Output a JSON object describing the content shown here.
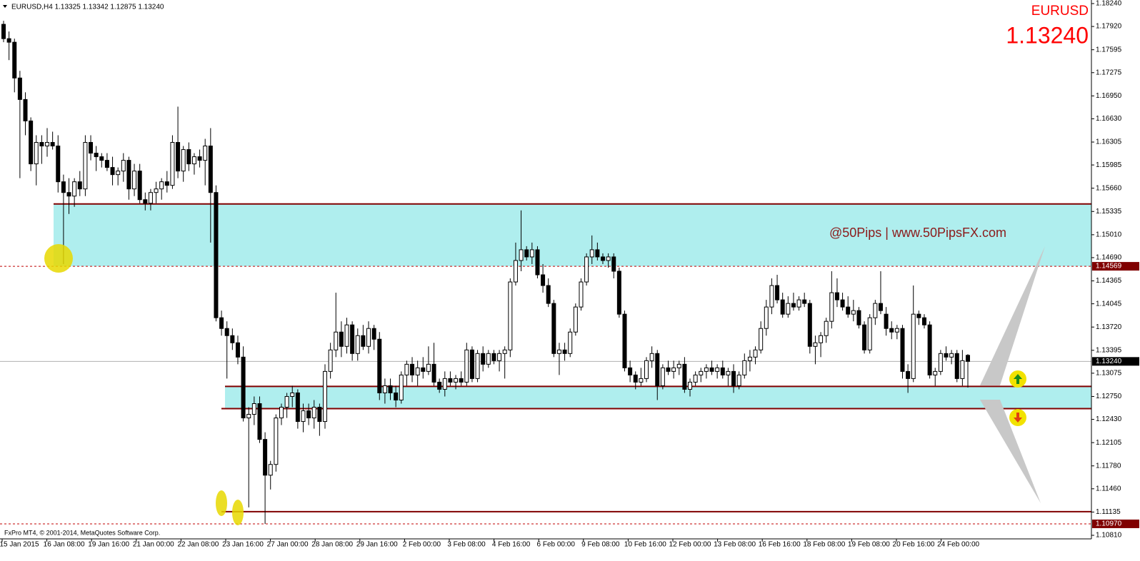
{
  "chart_data": {
    "type": "candlestick",
    "header": "EURUSD,H4  1.13325 1.13342 1.12875 1.13240",
    "symbol": "EURUSD",
    "last_price": {
      "value": 1.1324,
      "label": "1.13240"
    },
    "watermark": "@50Pips | www.50PipsFX.com",
    "copyright": "FxPro MT4, © 2001-2014, MetaQuotes Software Corp.",
    "up_color": "#ffffff",
    "down_color": "#000000",
    "zone_color": "#afeeee",
    "level_color": "#800000",
    "ylim": [
      1.1076,
      1.1829
    ],
    "yticks": [
      {
        "value": 1.1824,
        "label": "1.18240"
      },
      {
        "value": 1.1792,
        "label": "1.17920"
      },
      1.17595,
      1.17275,
      {
        "value": 1.1695,
        "label": "1.16950"
      },
      {
        "value": 1.1663,
        "label": "1.16630"
      },
      1.16305,
      1.15985,
      {
        "value": 1.1566,
        "label": "1.15660"
      },
      1.15335,
      {
        "value": 1.1501,
        "label": "1.15010"
      },
      {
        "value": 1.1469,
        "label": "1.14690"
      },
      1.14365,
      1.14045,
      {
        "value": 1.1372,
        "label": "1.13720"
      },
      1.13395,
      1.13075,
      {
        "value": 1.1275,
        "label": "1.12750"
      },
      {
        "value": 1.1243,
        "label": "1.12430"
      },
      1.12105,
      {
        "value": 1.1178,
        "label": "1.11780"
      },
      {
        "value": 1.1146,
        "label": "1.11460"
      },
      1.11135,
      {
        "value": 1.1081,
        "label": "1.10810"
      }
    ],
    "x_labels": [
      "15 Jan 2015",
      "16 Jan 08:00",
      "19 Jan 16:00",
      "21 Jan 00:00",
      "22 Jan 08:00",
      "23 Jan 16:00",
      "27 Jan 00:00",
      "28 Jan 08:00",
      "29 Jan 16:00",
      "2 Feb 00:00",
      "3 Feb 08:00",
      "4 Feb 16:00",
      "6 Feb 00:00",
      "9 Feb 08:00",
      "10 Feb 16:00",
      "12 Feb 00:00",
      "13 Feb 08:00",
      "16 Feb 16:00",
      "18 Feb 08:00",
      "19 Feb 08:00",
      "20 Feb 16:00",
      "24 Feb 00:00"
    ],
    "zones": [
      {
        "from": 1.14569,
        "to": 1.1544
      },
      {
        "from": 1.1258,
        "to": 1.1289
      }
    ],
    "levels": [
      1.1544,
      1.1289,
      1.1258,
      1.1114
    ],
    "price_tags": [
      {
        "value": 1.14569,
        "label": "1.14569",
        "color": "#800000",
        "line": "dashed"
      },
      {
        "value": 1.1324,
        "label": "1.13240",
        "color": "#000000",
        "line": "solid"
      },
      {
        "value": 1.1097,
        "label": "1.10970",
        "color": "#800000",
        "line": "dashed"
      }
    ],
    "open": [
      1.1795,
      1.1775,
      1.177,
      1.172,
      1.169,
      1.166,
      1.16,
      1.163,
      1.1625,
      1.163,
      1.1625,
      1.1575,
      1.156,
      1.1555,
      1.1575,
      1.1565,
      1.163,
      1.1615,
      1.161,
      1.1605,
      1.1595,
      1.1585,
      1.159,
      1.1605,
      1.1565,
      1.159,
      1.155,
      1.1545,
      1.156,
      1.1565,
      1.1575,
      1.157,
      1.163,
      1.159,
      1.162,
      1.16,
      1.161,
      1.1605,
      1.1625,
      1.156,
      1.1385,
      1.137,
      1.136,
      1.135,
      1.133,
      1.1245,
      1.125,
      1.1265,
      1.1215,
      1.1165,
      1.118,
      1.1245,
      1.126,
      1.1275,
      1.128,
      1.124,
      1.1255,
      1.1245,
      1.126,
      1.124,
      1.131,
      1.134,
      1.1365,
      1.1345,
      1.1375,
      1.1335,
      1.136,
      1.1345,
      1.137,
      1.1355,
      1.128,
      1.129,
      1.128,
      1.127,
      1.1305,
      1.132,
      1.1305,
      1.1315,
      1.131,
      1.132,
      1.1295,
      1.1285,
      1.13,
      1.1295,
      1.13,
      1.1295,
      1.134,
      1.13,
      1.1335,
      1.132,
      1.1335,
      1.1325,
      1.1335,
      1.134,
      1.1435,
      1.1465,
      1.148,
      1.147,
      1.148,
      1.1445,
      1.143,
      1.1405,
      1.1335,
      1.134,
      1.1335,
      1.1365,
      1.14,
      1.1435,
      1.147,
      1.148,
      1.147,
      1.1465,
      1.147,
      1.145,
      1.139,
      1.1315,
      1.1305,
      1.1295,
      1.13,
      1.1325,
      1.1335,
      1.129,
      1.1315,
      1.131,
      1.1315,
      1.132,
      1.1285,
      1.1295,
      1.1305,
      1.131,
      1.1315,
      1.131,
      1.1315,
      1.1305,
      1.131,
      1.129,
      1.1305,
      1.1325,
      1.133,
      1.134,
      1.137,
      1.14,
      1.143,
      1.141,
      1.139,
      1.1405,
      1.14,
      1.141,
      1.1405,
      1.1345,
      1.135,
      1.136,
      1.138,
      1.142,
      1.141,
      1.14,
      1.139,
      1.1395,
      1.1375,
      1.134,
      1.1385,
      1.1405,
      1.139,
      1.137,
      1.1365,
      1.137,
      1.131,
      1.13,
      1.139,
      1.1385,
      1.1375,
      1.1305,
      1.131,
      1.1335,
      1.133,
      1.1335,
      1.13,
      1.13325
    ],
    "high": [
      1.18,
      1.1785,
      1.1775,
      1.173,
      1.17,
      1.1665,
      1.164,
      1.164,
      1.165,
      1.1645,
      1.164,
      1.1585,
      1.158,
      1.158,
      1.159,
      1.164,
      1.164,
      1.1625,
      1.1615,
      1.1615,
      1.161,
      1.1595,
      1.1615,
      1.161,
      1.16,
      1.16,
      1.156,
      1.1565,
      1.1575,
      1.158,
      1.159,
      1.164,
      1.168,
      1.1625,
      1.163,
      1.1615,
      1.162,
      1.1635,
      1.165,
      1.157,
      1.1395,
      1.138,
      1.137,
      1.136,
      1.1345,
      1.126,
      1.1275,
      1.1275,
      1.1225,
      1.1185,
      1.125,
      1.1265,
      1.128,
      1.129,
      1.1285,
      1.1265,
      1.1265,
      1.127,
      1.1265,
      1.132,
      1.135,
      1.142,
      1.138,
      1.1385,
      1.138,
      1.137,
      1.1375,
      1.138,
      1.1375,
      1.1365,
      1.13,
      1.13,
      1.129,
      1.131,
      1.1325,
      1.133,
      1.1325,
      1.133,
      1.1345,
      1.135,
      1.13,
      1.131,
      1.131,
      1.1305,
      1.131,
      1.135,
      1.1345,
      1.134,
      1.1345,
      1.134,
      1.134,
      1.134,
      1.1345,
      1.144,
      1.149,
      1.1535,
      1.1485,
      1.149,
      1.1485,
      1.146,
      1.144,
      1.141,
      1.135,
      1.135,
      1.137,
      1.1405,
      1.144,
      1.1475,
      1.15,
      1.149,
      1.1475,
      1.1475,
      1.1475,
      1.1455,
      1.1395,
      1.1325,
      1.131,
      1.1315,
      1.133,
      1.1345,
      1.134,
      1.132,
      1.1325,
      1.1325,
      1.1325,
      1.133,
      1.13,
      1.131,
      1.1315,
      1.132,
      1.1325,
      1.132,
      1.1325,
      1.1315,
      1.132,
      1.131,
      1.1335,
      1.134,
      1.1345,
      1.138,
      1.141,
      1.144,
      1.1445,
      1.142,
      1.1415,
      1.142,
      1.1415,
      1.142,
      1.141,
      1.136,
      1.1365,
      1.1385,
      1.145,
      1.144,
      1.142,
      1.1415,
      1.141,
      1.14,
      1.138,
      1.139,
      1.141,
      1.145,
      1.14,
      1.138,
      1.1375,
      1.1375,
      1.132,
      1.143,
      1.1395,
      1.139,
      1.138,
      1.1315,
      1.134,
      1.1345,
      1.134,
      1.134,
      1.134,
      1.13342
    ],
    "low": [
      1.177,
      1.1745,
      1.17,
      1.158,
      1.164,
      1.159,
      1.157,
      1.16,
      1.161,
      1.162,
      1.156,
      1.146,
      1.153,
      1.154,
      1.1555,
      1.1555,
      1.1605,
      1.159,
      1.1595,
      1.159,
      1.157,
      1.157,
      1.1575,
      1.155,
      1.1555,
      1.1545,
      1.1535,
      1.1535,
      1.1545,
      1.155,
      1.156,
      1.1565,
      1.158,
      1.1575,
      1.159,
      1.1585,
      1.1595,
      1.157,
      1.149,
      1.138,
      1.136,
      1.13,
      1.134,
      1.132,
      1.124,
      1.112,
      1.1235,
      1.121,
      1.1097,
      1.1145,
      1.117,
      1.1235,
      1.1245,
      1.126,
      1.123,
      1.1225,
      1.1235,
      1.123,
      1.122,
      1.123,
      1.13,
      1.133,
      1.133,
      1.1335,
      1.1325,
      1.1325,
      1.134,
      1.1335,
      1.134,
      1.127,
      1.1265,
      1.127,
      1.126,
      1.1265,
      1.129,
      1.1295,
      1.129,
      1.13,
      1.1305,
      1.129,
      1.128,
      1.1275,
      1.129,
      1.1285,
      1.129,
      1.129,
      1.1295,
      1.1295,
      1.131,
      1.1315,
      1.132,
      1.131,
      1.13,
      1.133,
      1.143,
      1.145,
      1.1465,
      1.146,
      1.144,
      1.142,
      1.14,
      1.133,
      1.1305,
      1.1325,
      1.133,
      1.136,
      1.1395,
      1.143,
      1.146,
      1.1465,
      1.146,
      1.1455,
      1.144,
      1.1385,
      1.131,
      1.1295,
      1.1285,
      1.129,
      1.1295,
      1.1315,
      1.127,
      1.1285,
      1.1305,
      1.13,
      1.1305,
      1.128,
      1.1275,
      1.129,
      1.1295,
      1.13,
      1.1305,
      1.13,
      1.13,
      1.129,
      1.128,
      1.1285,
      1.13,
      1.131,
      1.132,
      1.1335,
      1.136,
      1.139,
      1.1405,
      1.1385,
      1.1385,
      1.1395,
      1.1395,
      1.14,
      1.1335,
      1.132,
      1.133,
      1.135,
      1.137,
      1.14,
      1.1395,
      1.1385,
      1.138,
      1.137,
      1.1335,
      1.1335,
      1.1375,
      1.139,
      1.136,
      1.1355,
      1.1355,
      1.13,
      1.128,
      1.1295,
      1.1375,
      1.137,
      1.13,
      1.129,
      1.1305,
      1.1325,
      1.132,
      1.1295,
      1.129,
      1.12875
    ],
    "close": [
      1.1775,
      1.177,
      1.172,
      1.169,
      1.166,
      1.16,
      1.163,
      1.1625,
      1.163,
      1.1625,
      1.1575,
      1.156,
      1.1555,
      1.1575,
      1.1565,
      1.163,
      1.1615,
      1.161,
      1.1605,
      1.1595,
      1.1585,
      1.159,
      1.1605,
      1.1565,
      1.159,
      1.155,
      1.1545,
      1.156,
      1.1565,
      1.1575,
      1.157,
      1.163,
      1.159,
      1.162,
      1.16,
      1.161,
      1.1605,
      1.1625,
      1.156,
      1.1385,
      1.137,
      1.136,
      1.135,
      1.133,
      1.1245,
      1.125,
      1.1265,
      1.1215,
      1.1165,
      1.118,
      1.1245,
      1.126,
      1.1275,
      1.128,
      1.124,
      1.1255,
      1.1245,
      1.126,
      1.124,
      1.131,
      1.134,
      1.1365,
      1.1345,
      1.1375,
      1.1335,
      1.136,
      1.1345,
      1.137,
      1.1355,
      1.128,
      1.129,
      1.128,
      1.127,
      1.1305,
      1.132,
      1.1305,
      1.1315,
      1.131,
      1.132,
      1.1295,
      1.1285,
      1.13,
      1.1295,
      1.13,
      1.1295,
      1.134,
      1.13,
      1.1335,
      1.132,
      1.1335,
      1.1325,
      1.1335,
      1.134,
      1.1435,
      1.1465,
      1.148,
      1.147,
      1.148,
      1.1445,
      1.143,
      1.1405,
      1.1335,
      1.134,
      1.1335,
      1.1365,
      1.14,
      1.1435,
      1.147,
      1.148,
      1.147,
      1.1465,
      1.147,
      1.145,
      1.139,
      1.1315,
      1.1305,
      1.1295,
      1.13,
      1.1325,
      1.1335,
      1.129,
      1.1315,
      1.131,
      1.1315,
      1.132,
      1.1285,
      1.1295,
      1.1305,
      1.131,
      1.1315,
      1.131,
      1.1315,
      1.1305,
      1.131,
      1.129,
      1.1305,
      1.1325,
      1.133,
      1.134,
      1.137,
      1.14,
      1.143,
      1.141,
      1.139,
      1.1405,
      1.14,
      1.141,
      1.1405,
      1.1345,
      1.135,
      1.136,
      1.138,
      1.142,
      1.141,
      1.14,
      1.139,
      1.1395,
      1.1375,
      1.134,
      1.1385,
      1.1405,
      1.1395,
      1.137,
      1.1365,
      1.137,
      1.131,
      1.13,
      1.139,
      1.1385,
      1.1375,
      1.1305,
      1.131,
      1.1335,
      1.133,
      1.1335,
      1.13,
      1.1325,
      1.1324
    ]
  }
}
